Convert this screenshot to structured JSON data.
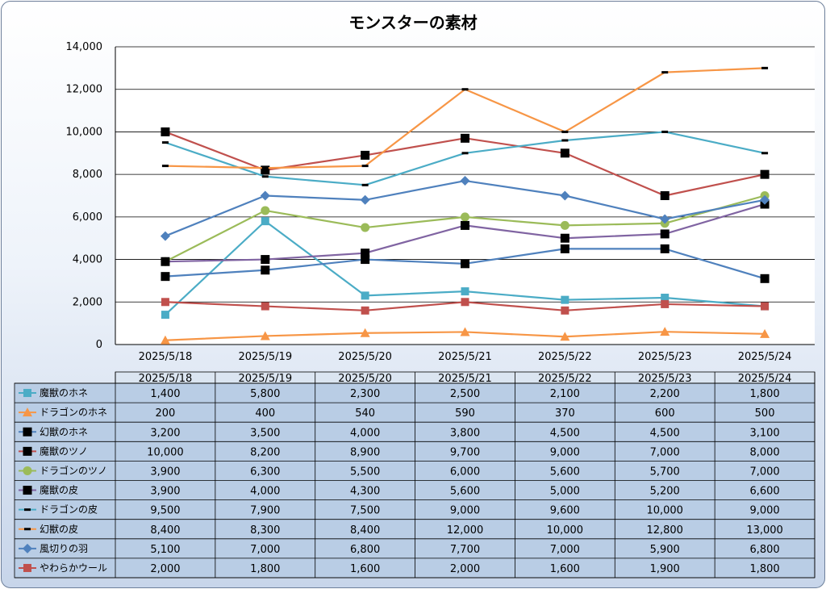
{
  "chart_data": {
    "type": "line",
    "title": "モンスターの素材",
    "categories": [
      "2025/5/18",
      "2025/5/19",
      "2025/5/20",
      "2025/5/21",
      "2025/5/22",
      "2025/5/23",
      "2025/5/24"
    ],
    "ylim": [
      0,
      14000
    ],
    "yticks": [
      "0",
      "2,000",
      "4,000",
      "6,000",
      "8,000",
      "10,000",
      "12,000",
      "14,000"
    ],
    "ytick_values": [
      0,
      2000,
      4000,
      6000,
      8000,
      10000,
      12000,
      14000
    ],
    "grid": true,
    "legend": "data-table",
    "series": [
      {
        "name": "魔獣のホネ",
        "color": "#4bacc6",
        "marker": "square",
        "values": [
          1400,
          5800,
          2300,
          2500,
          2100,
          2200,
          1800
        ],
        "labels": [
          "1,400",
          "5,800",
          "2,300",
          "2,500",
          "2,100",
          "2,200",
          "1,800"
        ]
      },
      {
        "name": "ドラゴンのホネ",
        "color": "#f79646",
        "marker": "triangle",
        "values": [
          200,
          400,
          540,
          590,
          370,
          600,
          500
        ],
        "labels": [
          "200",
          "400",
          "540",
          "590",
          "370",
          "600",
          "500"
        ]
      },
      {
        "name": "幻獣のホネ",
        "color": "#4f81bd",
        "marker": "bigsquare",
        "values": [
          3200,
          3500,
          4000,
          3800,
          4500,
          4500,
          3100
        ],
        "labels": [
          "3,200",
          "3,500",
          "4,000",
          "3,800",
          "4,500",
          "4,500",
          "3,100"
        ]
      },
      {
        "name": "魔獣のツノ",
        "color": "#c0504d",
        "marker": "bigsquare",
        "values": [
          10000,
          8200,
          8900,
          9700,
          9000,
          7000,
          8000
        ],
        "labels": [
          "10,000",
          "8,200",
          "8,900",
          "9,700",
          "9,000",
          "7,000",
          "8,000"
        ]
      },
      {
        "name": "ドラゴンのツノ",
        "color": "#9bbb59",
        "marker": "circle",
        "values": [
          3900,
          6300,
          5500,
          6000,
          5600,
          5700,
          7000
        ],
        "labels": [
          "3,900",
          "6,300",
          "5,500",
          "6,000",
          "5,600",
          "5,700",
          "7,000"
        ]
      },
      {
        "name": "魔獣の皮",
        "color": "#8064a2",
        "marker": "bigsquare",
        "values": [
          3900,
          4000,
          4300,
          5600,
          5000,
          5200,
          6600
        ],
        "labels": [
          "3,900",
          "4,000",
          "4,300",
          "5,600",
          "5,000",
          "5,200",
          "6,600"
        ]
      },
      {
        "name": "ドラゴンの皮",
        "color": "#4bacc6",
        "marker": "dash",
        "values": [
          9500,
          7900,
          7500,
          9000,
          9600,
          10000,
          9000
        ],
        "labels": [
          "9,500",
          "7,900",
          "7,500",
          "9,000",
          "9,600",
          "10,000",
          "9,000"
        ]
      },
      {
        "name": "幻獣の皮",
        "color": "#f79646",
        "marker": "dash",
        "values": [
          8400,
          8300,
          8400,
          12000,
          10000,
          12800,
          13000
        ],
        "labels": [
          "8,400",
          "8,300",
          "8,400",
          "12,000",
          "10,000",
          "12,800",
          "13,000"
        ]
      },
      {
        "name": "風切りの羽",
        "color": "#4f81bd",
        "marker": "diamond",
        "values": [
          5100,
          7000,
          6800,
          7700,
          7000,
          5900,
          6800
        ],
        "labels": [
          "5,100",
          "7,000",
          "6,800",
          "7,700",
          "7,000",
          "5,900",
          "6,800"
        ]
      },
      {
        "name": "やわらかウール",
        "color": "#c0504d",
        "marker": "square",
        "values": [
          2000,
          1800,
          1600,
          2000,
          1600,
          1900,
          1800
        ],
        "labels": [
          "2,000",
          "1,800",
          "1,600",
          "2,000",
          "1,600",
          "1,900",
          "1,800"
        ]
      }
    ]
  }
}
